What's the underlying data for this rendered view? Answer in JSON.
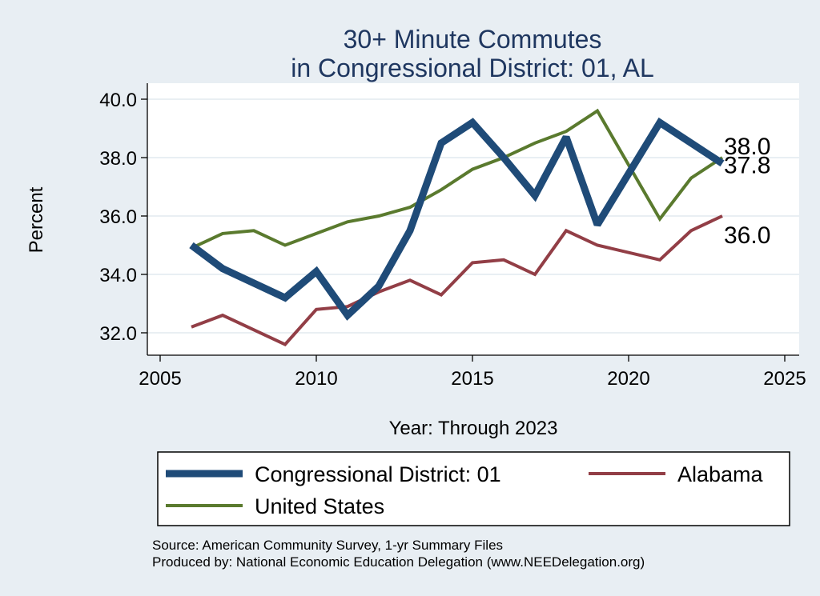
{
  "chart_data": {
    "type": "line",
    "title_lines": [
      "30+ Minute Commutes",
      "in Congressional District:  01, AL"
    ],
    "xlabel": "Year: Through 2023",
    "ylabel": "Percent",
    "xlim": [
      2005,
      2025
    ],
    "ylim": [
      31.3,
      40.5
    ],
    "x_ticks": [
      2005,
      2010,
      2015,
      2020,
      2025
    ],
    "x_tick_labels": [
      "2005",
      "2010",
      "2015",
      "2020",
      "2025"
    ],
    "y_ticks": [
      32,
      34,
      36,
      38,
      40
    ],
    "y_tick_labels": [
      "32.0",
      "34.0",
      "36.0",
      "38.0",
      "40.0"
    ],
    "grid": true,
    "legend_position": "bottom",
    "series": [
      {
        "name": "Congressional District:  01",
        "color": "#1f4b78",
        "line_width": "thick",
        "x": [
          2006,
          2007,
          2008,
          2009,
          2010,
          2011,
          2012,
          2013,
          2014,
          2015,
          2016,
          2017,
          2018,
          2019,
          2021,
          2022,
          2023
        ],
        "y": [
          35.0,
          34.2,
          33.7,
          33.2,
          34.1,
          32.6,
          33.6,
          35.5,
          38.5,
          39.2,
          38.0,
          36.7,
          38.7,
          35.7,
          39.2,
          38.5,
          37.8
        ],
        "end_label": "37.8"
      },
      {
        "name": "Alabama",
        "color": "#923e46",
        "line_width": "medium",
        "x": [
          2006,
          2007,
          2008,
          2009,
          2010,
          2011,
          2012,
          2013,
          2014,
          2015,
          2016,
          2017,
          2018,
          2019,
          2021,
          2022,
          2023
        ],
        "y": [
          32.2,
          32.6,
          32.1,
          31.6,
          32.8,
          32.9,
          33.4,
          33.8,
          33.3,
          34.4,
          34.5,
          34.0,
          35.5,
          35.0,
          34.5,
          35.5,
          36.0
        ],
        "end_label": "36.0"
      },
      {
        "name": "United States",
        "color": "#5a7a2e",
        "line_width": "medium",
        "x": [
          2006,
          2007,
          2008,
          2009,
          2010,
          2011,
          2012,
          2013,
          2014,
          2015,
          2016,
          2017,
          2018,
          2019,
          2021,
          2022,
          2023
        ],
        "y": [
          34.9,
          35.4,
          35.5,
          35.0,
          35.4,
          35.8,
          36.0,
          36.3,
          36.9,
          37.6,
          38.0,
          38.5,
          38.9,
          39.6,
          35.9,
          37.3,
          38.0
        ],
        "end_label": "38.0"
      }
    ],
    "legend": [
      "Congressional District:  01",
      "Alabama",
      "United States"
    ],
    "source_lines": [
      "Source: American Community Survey, 1-yr Summary Files",
      "Produced by: National Economic Education Delegation (www.NEEDelegation.org)"
    ]
  }
}
